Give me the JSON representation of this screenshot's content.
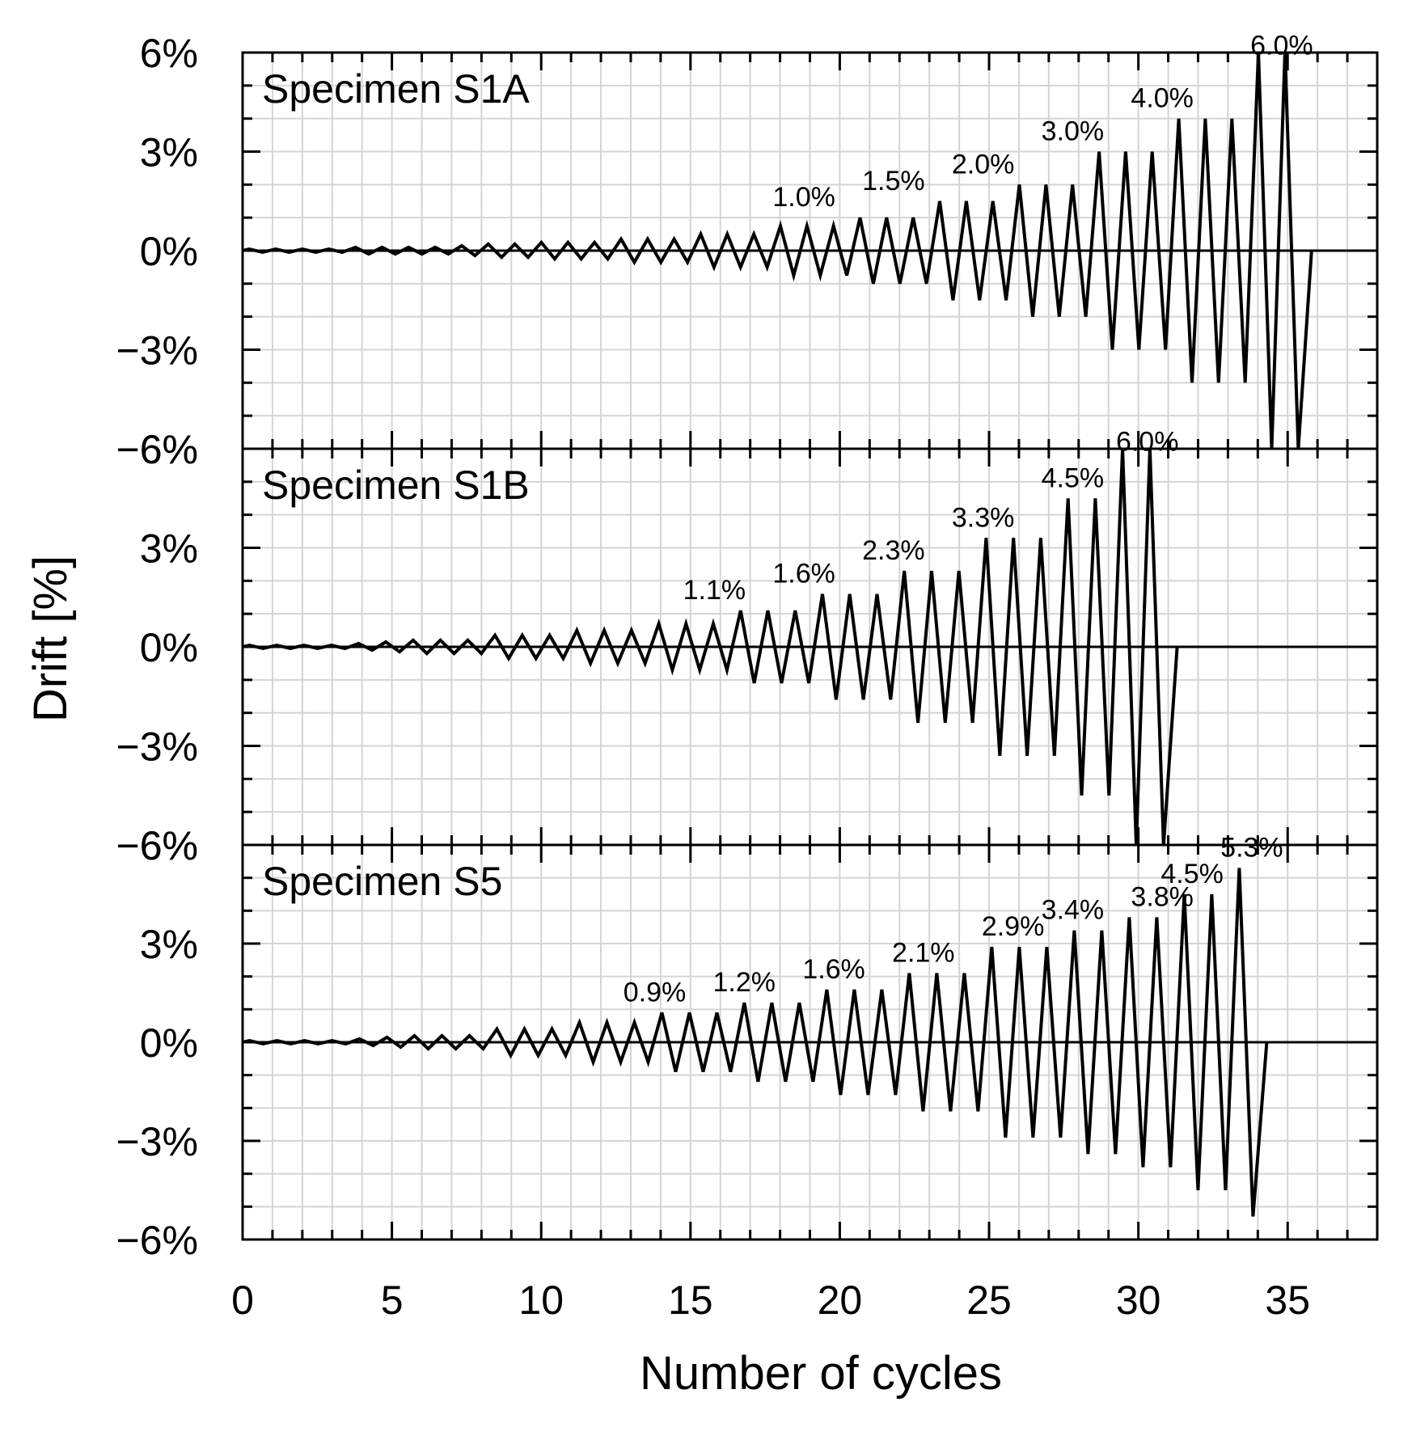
{
  "chart_data": {
    "type": "line",
    "xlabel": "Number of cycles",
    "ylabel": "Drift [%]",
    "xlim": [
      0,
      38
    ],
    "ylim": [
      -6,
      6
    ],
    "x_ticks": [
      0,
      5,
      10,
      15,
      20,
      25,
      30,
      35
    ],
    "x_tick_labels": [
      "0",
      "5",
      "10",
      "15",
      "20",
      "25",
      "30",
      "35"
    ],
    "y_ticks": [
      -6,
      -3,
      0,
      3,
      6
    ],
    "y_tick_labels": [
      "−6%",
      "−3%",
      "0%",
      "3%",
      "6%"
    ],
    "grid": true,
    "panels": [
      {
        "title": "Specimen S1A",
        "amplitudes": [
          0.05,
          0.05,
          0.05,
          0.05,
          0.1,
          0.1,
          0.1,
          0.1,
          0.15,
          0.2,
          0.2,
          0.25,
          0.25,
          0.25,
          0.35,
          0.35,
          0.35,
          0.5,
          0.5,
          0.5,
          0.75,
          0.75,
          0.75,
          1.0,
          1.0,
          1.0,
          1.5,
          1.5,
          1.5,
          2.0,
          2.0,
          2.0,
          3.0,
          3.0,
          3.0,
          4.0,
          4.0,
          4.0,
          6.0,
          6.0
        ],
        "total_cycles": 35.8,
        "annotations": [
          {
            "text": "1.0%",
            "x": 18.8,
            "y": 1.0
          },
          {
            "text": "1.5%",
            "x": 21.8,
            "y": 1.5
          },
          {
            "text": "2.0%",
            "x": 24.8,
            "y": 2.0
          },
          {
            "text": "3.0%",
            "x": 27.8,
            "y": 3.0
          },
          {
            "text": "4.0%",
            "x": 30.8,
            "y": 4.0
          },
          {
            "text": "6.0%",
            "x": 34.8,
            "y": 6.0
          }
        ]
      },
      {
        "title": "Specimen S1B",
        "amplitudes": [
          0.05,
          0.05,
          0.05,
          0.05,
          0.1,
          0.15,
          0.2,
          0.2,
          0.2,
          0.35,
          0.35,
          0.35,
          0.5,
          0.5,
          0.5,
          0.7,
          0.7,
          0.7,
          1.1,
          1.1,
          1.1,
          1.6,
          1.6,
          1.6,
          2.3,
          2.3,
          2.3,
          3.3,
          3.3,
          3.3,
          4.5,
          4.5,
          6.0,
          6.0
        ],
        "total_cycles": 31.3,
        "annotations": [
          {
            "text": "1.1%",
            "x": 15.8,
            "y": 1.1
          },
          {
            "text": "1.6%",
            "x": 18.8,
            "y": 1.6
          },
          {
            "text": "2.3%",
            "x": 21.8,
            "y": 2.3
          },
          {
            "text": "3.3%",
            "x": 24.8,
            "y": 3.3
          },
          {
            "text": "4.5%",
            "x": 27.8,
            "y": 4.5
          },
          {
            "text": "6.0%",
            "x": 30.3,
            "y": 6.0
          }
        ]
      },
      {
        "title": "Specimen S5",
        "amplitudes": [
          0.05,
          0.05,
          0.05,
          0.05,
          0.1,
          0.15,
          0.2,
          0.2,
          0.2,
          0.4,
          0.4,
          0.4,
          0.6,
          0.6,
          0.6,
          0.9,
          0.9,
          0.9,
          1.2,
          1.2,
          1.2,
          1.6,
          1.6,
          1.6,
          2.1,
          2.1,
          2.1,
          2.9,
          2.9,
          2.9,
          3.4,
          3.4,
          3.8,
          3.8,
          4.5,
          4.5,
          5.3
        ],
        "total_cycles": 34.3,
        "annotations": [
          {
            "text": "0.9%",
            "x": 13.8,
            "y": 0.9
          },
          {
            "text": "1.2%",
            "x": 16.8,
            "y": 1.2
          },
          {
            "text": "1.6%",
            "x": 19.8,
            "y": 1.6
          },
          {
            "text": "2.1%",
            "x": 22.8,
            "y": 2.1
          },
          {
            "text": "2.9%",
            "x": 25.8,
            "y": 2.9
          },
          {
            "text": "3.4%",
            "x": 27.8,
            "y": 3.4
          },
          {
            "text": "3.8%",
            "x": 30.8,
            "y": 3.8
          },
          {
            "text": "4.5%",
            "x": 31.8,
            "y": 4.5
          },
          {
            "text": "5.3%",
            "x": 33.8,
            "y": 5.3
          }
        ]
      }
    ]
  }
}
